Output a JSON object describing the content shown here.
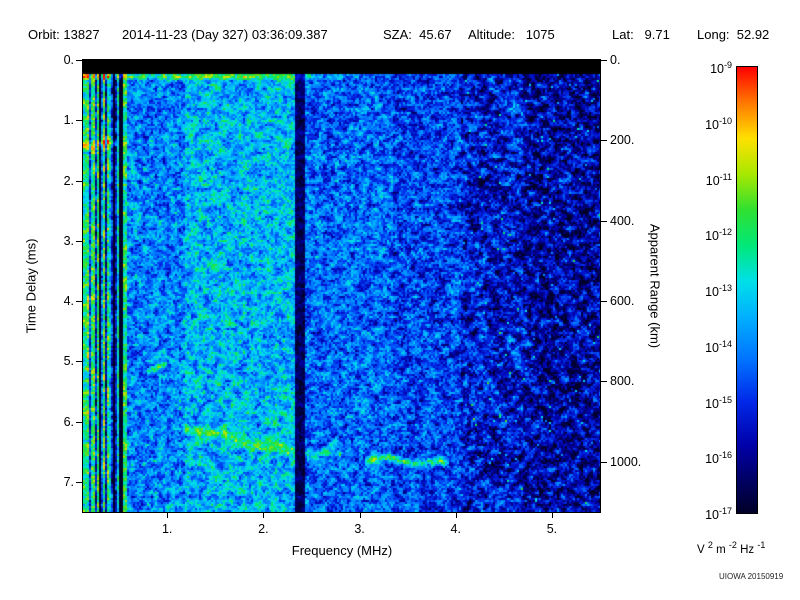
{
  "header": {
    "orbit": "Orbit: 13827",
    "datetime": "2014-11-23 (Day 327) 03:36:09.387",
    "sza": "SZA:  45.67",
    "altitude": "Altitude:   1075",
    "lat": "Lat:   9.71",
    "long": "Long:  52.92"
  },
  "credit": "UIOWA 20150919",
  "chart_data": {
    "type": "heatmap",
    "xlabel": "Frequency (MHz)",
    "ylabel": "Time Delay (ms)",
    "y2label": "Apparent Range (km)",
    "x_range": [
      0.125,
      5.5
    ],
    "y_range": [
      0,
      7.5
    ],
    "x_ticks": [
      {
        "value": 1,
        "label": "1."
      },
      {
        "value": 2,
        "label": "2."
      },
      {
        "value": 3,
        "label": "3."
      },
      {
        "value": 4,
        "label": "4."
      },
      {
        "value": 5,
        "label": "5."
      }
    ],
    "y_ticks": [
      {
        "value": 0,
        "label": "0."
      },
      {
        "value": 1,
        "label": "1."
      },
      {
        "value": 2,
        "label": "2."
      },
      {
        "value": 3,
        "label": "3."
      },
      {
        "value": 4,
        "label": "4."
      },
      {
        "value": 5,
        "label": "5."
      },
      {
        "value": 6,
        "label": "6."
      },
      {
        "value": 7,
        "label": "7."
      }
    ],
    "y2_ticks": [
      {
        "km": 0,
        "time_delay_ms": 0,
        "label": "0."
      },
      {
        "km": 200,
        "time_delay_ms": 1.3333,
        "label": "200."
      },
      {
        "km": 400,
        "time_delay_ms": 2.6667,
        "label": "400."
      },
      {
        "km": 600,
        "time_delay_ms": 4.0,
        "label": "600."
      },
      {
        "km": 800,
        "time_delay_ms": 5.3333,
        "label": "800."
      },
      {
        "km": 1000,
        "time_delay_ms": 6.6667,
        "label": "1000."
      }
    ],
    "colorbar": {
      "scale": "log",
      "min": "1e-17",
      "max": "1e-9",
      "mantissa": "10",
      "exponents": [
        -9,
        -10,
        -11,
        -12,
        -13,
        -14,
        -15,
        -16,
        -17
      ],
      "units_parts": [
        {
          "base": "V ",
          "sup": "2"
        },
        {
          "base": " m ",
          "sup": "-2"
        },
        {
          "base": " Hz ",
          "sup": "-1"
        }
      ]
    },
    "colormap": [
      {
        "v": 0.0,
        "c": "#000028"
      },
      {
        "v": 0.07,
        "c": "#000060"
      },
      {
        "v": 0.15,
        "c": "#0000a8"
      },
      {
        "v": 0.25,
        "c": "#0028e8"
      },
      {
        "v": 0.34,
        "c": "#0070ff"
      },
      {
        "v": 0.44,
        "c": "#00b0ff"
      },
      {
        "v": 0.52,
        "c": "#00e0e8"
      },
      {
        "v": 0.6,
        "c": "#00e878"
      },
      {
        "v": 0.68,
        "c": "#30e030"
      },
      {
        "v": 0.76,
        "c": "#a8e800"
      },
      {
        "v": 0.84,
        "c": "#ffe000"
      },
      {
        "v": 0.92,
        "c": "#ff7800"
      },
      {
        "v": 1.0,
        "c": "#ff0000"
      }
    ],
    "features": {
      "blackout_top_ms": 0.22,
      "striped_max_mhz": 0.58,
      "speckle_min_mhz": 4.05,
      "dark_columns": [
        0.3,
        0.44,
        0.52
      ],
      "bright_columns": [
        0.155,
        0.205
      ],
      "surface_line": {
        "t": 0.27,
        "width_ms": 0.08,
        "amp": 0.3,
        "f_full": 1.5,
        "f_max": 3.5
      },
      "bands": [
        {
          "f0": 0.125,
          "f1": 0.58,
          "base": 0.36,
          "striped": true
        },
        {
          "f0": 0.58,
          "f1": 1.18,
          "base": 0.37
        },
        {
          "f0": 1.18,
          "f1": 2.32,
          "base": 0.45
        },
        {
          "f0": 2.32,
          "f1": 2.43,
          "base": 0.07
        },
        {
          "f0": 2.43,
          "f1": 3.35,
          "base": 0.33
        },
        {
          "f0": 3.35,
          "f1": 4.05,
          "base": 0.28
        },
        {
          "f0": 4.05,
          "f1": 4.7,
          "base": 0.22
        },
        {
          "f0": 4.7,
          "f1": 5.51,
          "base": 0.16
        }
      ],
      "echo_traces": [
        {
          "f0": 0.125,
          "f1": 0.46,
          "t0": 1.39,
          "t1": 1.41,
          "width_ms": 0.12,
          "amp": 0.3
        },
        {
          "f0": 0.78,
          "f1": 1.0,
          "t0": 5.17,
          "t1": 5.08,
          "width_ms": 0.09,
          "amp": 0.26
        },
        {
          "f0": 1.19,
          "f1": 2.32,
          "t0": 6.1,
          "t1": 6.5,
          "width_ms": 0.14,
          "amp": 0.24
        },
        {
          "f0": 2.43,
          "f1": 2.8,
          "t0": 6.51,
          "t1": 6.56,
          "width_ms": 0.1,
          "amp": 0.2
        },
        {
          "f0": 3.05,
          "f1": 3.92,
          "t0": 6.62,
          "t1": 6.7,
          "width_ms": 0.11,
          "amp": 0.34
        }
      ]
    }
  }
}
